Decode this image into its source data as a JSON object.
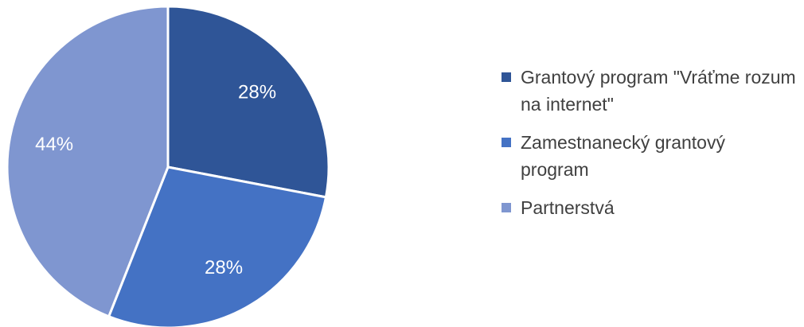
{
  "chart_data": {
    "type": "pie",
    "categories": [
      "Grantový program \"Vráťme rozum na internet\"",
      "Zamestnanecký grantový program",
      "Partnerstvá"
    ],
    "values": [
      28,
      28,
      44
    ],
    "value_labels": [
      "28%",
      "28%",
      "44%"
    ],
    "colors": [
      "#2f5597",
      "#4472c4",
      "#7f96d0"
    ],
    "legend": "right"
  }
}
